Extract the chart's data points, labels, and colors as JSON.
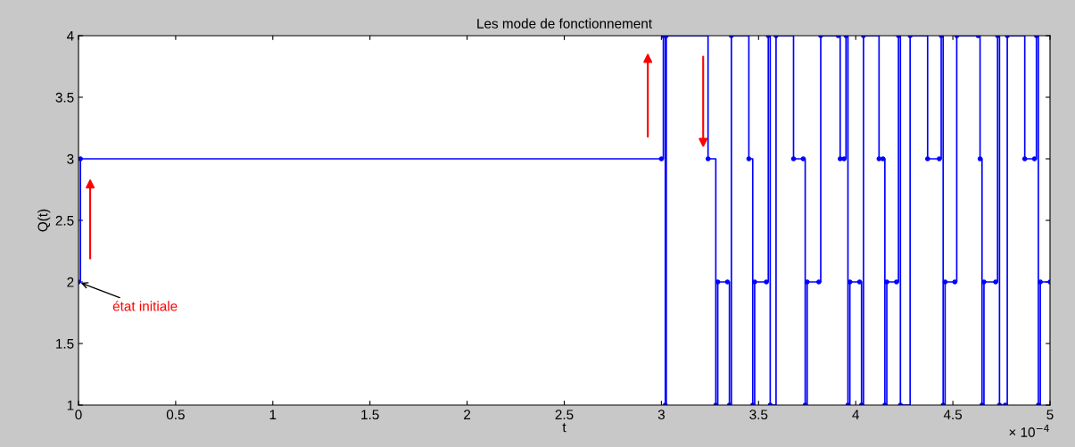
{
  "chart_data": {
    "type": "step",
    "title": "Les mode de fonctionnement",
    "xlabel": "t",
    "ylabel": "Q(t)",
    "x": [
      0,
      0.01,
      3.0,
      3.01,
      3.02,
      3.025,
      3.24,
      3.28,
      3.29,
      3.34,
      3.35,
      3.36,
      3.45,
      3.47,
      3.48,
      3.54,
      3.55,
      3.56,
      3.59,
      3.68,
      3.73,
      3.74,
      3.75,
      3.81,
      3.82,
      3.91,
      3.92,
      3.94,
      3.95,
      3.96,
      3.97,
      4.02,
      4.03,
      4.04,
      4.12,
      4.14,
      4.15,
      4.16,
      4.21,
      4.22,
      4.23,
      4.28,
      4.37,
      4.43,
      4.44,
      4.45,
      4.46,
      4.51,
      4.52,
      4.63,
      4.64,
      4.65,
      4.66,
      4.72,
      4.73,
      4.74,
      4.77,
      4.78,
      4.87,
      4.92,
      4.93,
      4.94,
      4.95,
      5.0
    ],
    "series": [
      {
        "color": "#0000ff",
        "values": [
          2,
          3,
          3,
          4,
          1,
          4,
          3,
          1,
          2,
          2,
          1,
          4,
          3,
          1,
          2,
          2,
          4,
          1,
          4,
          3,
          3,
          1,
          2,
          2,
          4,
          4,
          3,
          3,
          4,
          1,
          2,
          2,
          1,
          4,
          3,
          3,
          1,
          2,
          2,
          4,
          1,
          4,
          3,
          3,
          4,
          1,
          2,
          2,
          4,
          4,
          3,
          1,
          2,
          2,
          4,
          1,
          1,
          4,
          3,
          3,
          4,
          1,
          2,
          2
        ]
      }
    ],
    "xlim": [
      0,
      5
    ],
    "xticks": [
      0,
      0.5,
      1,
      1.5,
      2,
      2.5,
      3,
      3.5,
      4,
      4.5,
      5
    ],
    "ylim": [
      1,
      4
    ],
    "yticks": [
      1,
      1.5,
      2,
      2.5,
      3,
      3.5,
      4
    ],
    "marker": "circle",
    "line_style": "solid",
    "grid": false,
    "legend": false,
    "annotations": [
      {
        "text": "état initiale",
        "x": 0,
        "y": 2
      },
      "× 10$^{−4}$"
    ]
  }
}
